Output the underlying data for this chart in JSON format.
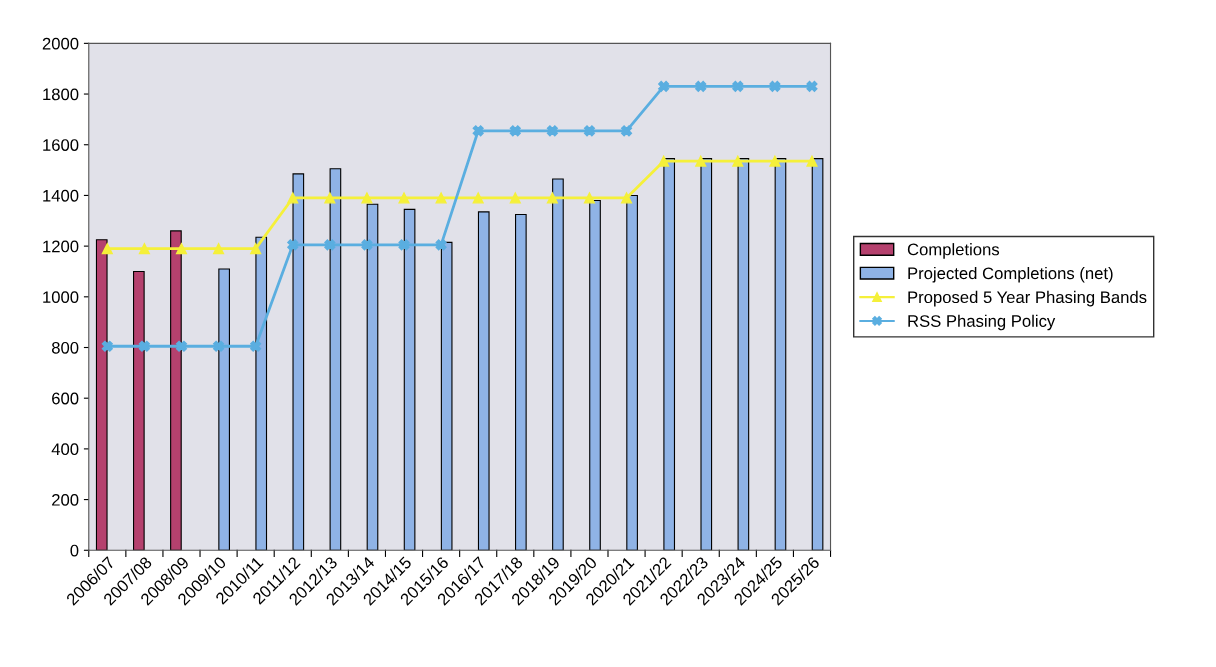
{
  "chart_data": {
    "type": "bar",
    "categories": [
      "2006/07",
      "2007/08",
      "2008/09",
      "2009/10",
      "2010/11",
      "2011/12",
      "2012/13",
      "2013/14",
      "2014/15",
      "2015/16",
      "2016/17",
      "2017/18",
      "2018/19",
      "2019/20",
      "2020/21",
      "2021/22",
      "2022/23",
      "2023/24",
      "2024/25",
      "2025/26"
    ],
    "series": [
      {
        "name": "Completions",
        "color": "#b5416e",
        "values": [
          1225,
          1100,
          1260,
          null,
          null,
          null,
          null,
          null,
          null,
          null,
          null,
          null,
          null,
          null,
          null,
          null,
          null,
          null,
          null,
          null
        ]
      },
      {
        "name": "Projected Completions (net)",
        "color": "#8fb3e6",
        "values": [
          null,
          null,
          null,
          1110,
          1235,
          1485,
          1505,
          1365,
          1345,
          1215,
          1335,
          1325,
          1465,
          1380,
          1400,
          1545,
          1545,
          1545,
          1545,
          1545
        ]
      },
      {
        "name": "Proposed 5 Year Phasing Bands",
        "type": "line",
        "color": "#f5f03a",
        "marker": "triangle",
        "values": [
          1190,
          1190,
          1190,
          1190,
          1190,
          1390,
          1390,
          1390,
          1390,
          1390,
          1390,
          1390,
          1390,
          1390,
          1390,
          1535,
          1535,
          1535,
          1535,
          1535
        ]
      },
      {
        "name": "RSS Phasing Policy",
        "type": "line",
        "color": "#5aaee0",
        "marker": "cross",
        "values": [
          805,
          805,
          805,
          805,
          805,
          1205,
          1205,
          1205,
          1205,
          1205,
          1655,
          1655,
          1655,
          1655,
          1655,
          1830,
          1830,
          1830,
          1830,
          1830
        ]
      }
    ],
    "ylim": [
      0,
      2000
    ],
    "yticks": [
      0,
      200,
      400,
      600,
      800,
      1000,
      1200,
      1400,
      1600,
      1800,
      2000
    ],
    "grid": false,
    "legend": "right"
  }
}
